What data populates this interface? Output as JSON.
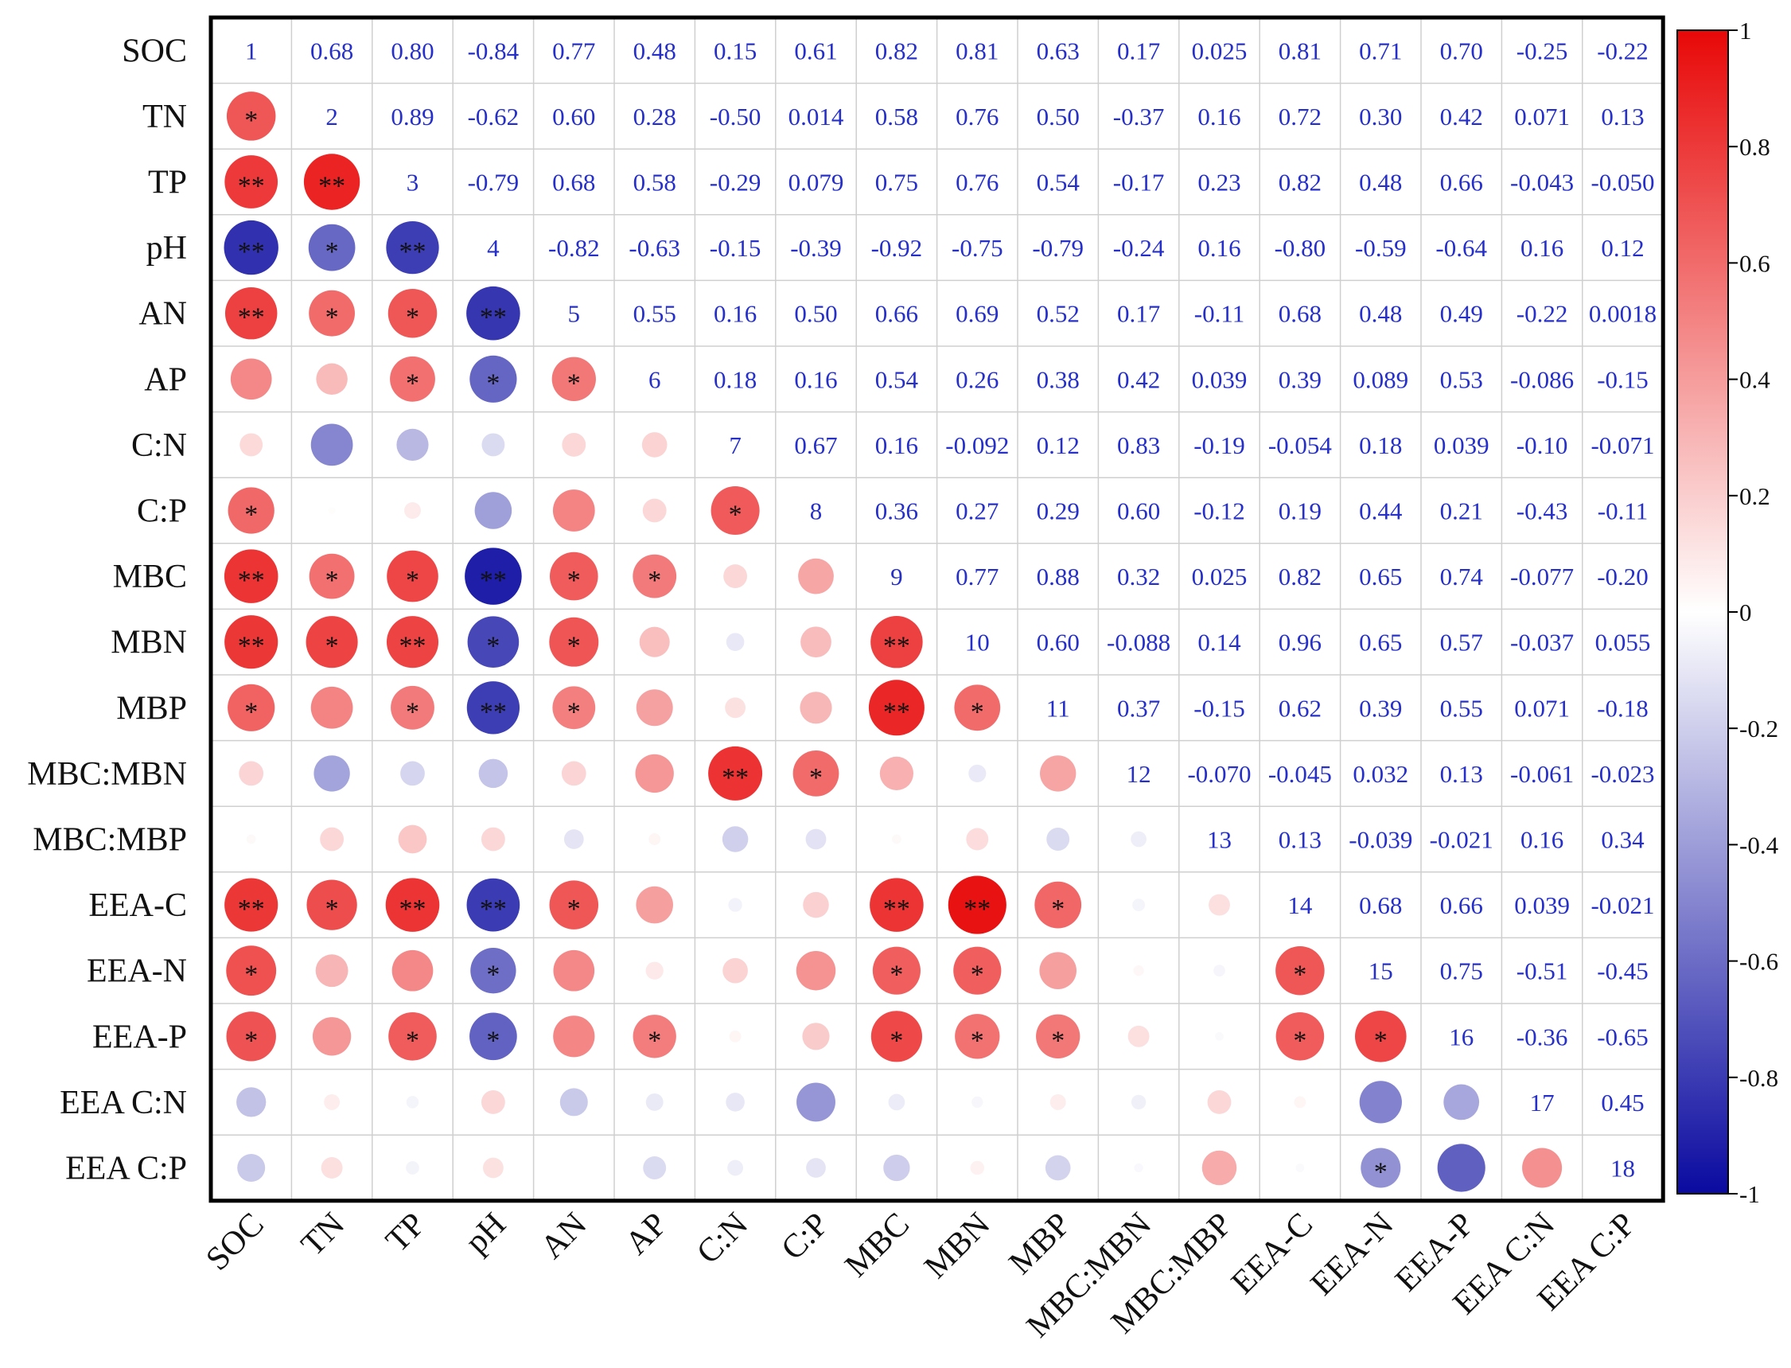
{
  "chart_data": {
    "type": "heatmap",
    "variables": [
      "SOC",
      "TN",
      "TP",
      "pH",
      "AN",
      "AP",
      "C:N",
      "C:P",
      "MBC",
      "MBN",
      "MBP",
      "MBC:MBN",
      "MBC:MBP",
      "EEA-C",
      "EEA-N",
      "EEA-P",
      "EEA C:N",
      "EEA C:P"
    ],
    "upper_labels": [
      [
        "1",
        "0.68",
        "0.80",
        "-0.84",
        "0.77",
        "0.48",
        "0.15",
        "0.61",
        "0.82",
        "0.81",
        "0.63",
        "0.17",
        "0.025",
        "0.81",
        "0.71",
        "0.70",
        "-0.25",
        "-0.22"
      ],
      [
        "",
        "2",
        "0.89",
        "-0.62",
        "0.60",
        "0.28",
        "-0.50",
        "0.014",
        "0.58",
        "0.76",
        "0.50",
        "-0.37",
        "0.16",
        "0.72",
        "0.30",
        "0.42",
        "0.071",
        "0.13"
      ],
      [
        "",
        "",
        "3",
        "-0.79",
        "0.68",
        "0.58",
        "-0.29",
        "0.079",
        "0.75",
        "0.76",
        "0.54",
        "-0.17",
        "0.23",
        "0.82",
        "0.48",
        "0.66",
        "-0.043",
        "-0.050"
      ],
      [
        "",
        "",
        "",
        "4",
        "-0.82",
        "-0.63",
        "-0.15",
        "-0.39",
        "-0.92",
        "-0.75",
        "-0.79",
        "-0.24",
        "0.16",
        "-0.80",
        "-0.59",
        "-0.64",
        "0.16",
        "0.12"
      ],
      [
        "",
        "",
        "",
        "",
        "5",
        "0.55",
        "0.16",
        "0.50",
        "0.66",
        "0.69",
        "0.52",
        "0.17",
        "-0.11",
        "0.68",
        "0.48",
        "0.49",
        "-0.22",
        "0.0018"
      ],
      [
        "",
        "",
        "",
        "",
        "",
        "6",
        "0.18",
        "0.16",
        "0.54",
        "0.26",
        "0.38",
        "0.42",
        "0.039",
        "0.39",
        "0.089",
        "0.53",
        "-0.086",
        "-0.15"
      ],
      [
        "",
        "",
        "",
        "",
        "",
        "",
        "7",
        "0.67",
        "0.16",
        "-0.092",
        "0.12",
        "0.83",
        "-0.19",
        "-0.054",
        "0.18",
        "0.039",
        "-0.10",
        "-0.071"
      ],
      [
        "",
        "",
        "",
        "",
        "",
        "",
        "",
        "8",
        "0.36",
        "0.27",
        "0.29",
        "0.60",
        "-0.12",
        "0.19",
        "0.44",
        "0.21",
        "-0.43",
        "-0.11"
      ],
      [
        "",
        "",
        "",
        "",
        "",
        "",
        "",
        "",
        "9",
        "0.77",
        "0.88",
        "0.32",
        "0.025",
        "0.82",
        "0.65",
        "0.74",
        "-0.077",
        "-0.20"
      ],
      [
        "",
        "",
        "",
        "",
        "",
        "",
        "",
        "",
        "",
        "10",
        "0.60",
        "-0.088",
        "0.14",
        "0.96",
        "0.65",
        "0.57",
        "-0.037",
        "0.055"
      ],
      [
        "",
        "",
        "",
        "",
        "",
        "",
        "",
        "",
        "",
        "",
        "11",
        "0.37",
        "-0.15",
        "0.62",
        "0.39",
        "0.55",
        "0.071",
        "-0.18"
      ],
      [
        "",
        "",
        "",
        "",
        "",
        "",
        "",
        "",
        "",
        "",
        "",
        "12",
        "-0.070",
        "-0.045",
        "0.032",
        "0.13",
        "-0.061",
        "-0.023"
      ],
      [
        "",
        "",
        "",
        "",
        "",
        "",
        "",
        "",
        "",
        "",
        "",
        "",
        "13",
        "0.13",
        "-0.039",
        "-0.021",
        "0.16",
        "0.34"
      ],
      [
        "",
        "",
        "",
        "",
        "",
        "",
        "",
        "",
        "",
        "",
        "",
        "",
        "",
        "14",
        "0.68",
        "0.66",
        "0.039",
        "-0.021"
      ],
      [
        "",
        "",
        "",
        "",
        "",
        "",
        "",
        "",
        "",
        "",
        "",
        "",
        "",
        "",
        "15",
        "0.75",
        "-0.51",
        "-0.45"
      ],
      [
        "",
        "",
        "",
        "",
        "",
        "",
        "",
        "",
        "",
        "",
        "",
        "",
        "",
        "",
        "",
        "16",
        "-0.36",
        "-0.65"
      ],
      [
        "",
        "",
        "",
        "",
        "",
        "",
        "",
        "",
        "",
        "",
        "",
        "",
        "",
        "",
        "",
        "",
        "17",
        "0.45"
      ],
      [
        "",
        "",
        "",
        "",
        "",
        "",
        "",
        "",
        "",
        "",
        "",
        "",
        "",
        "",
        "",
        "",
        "",
        "18"
      ]
    ],
    "significance": [
      [
        "",
        "",
        "",
        "",
        "",
        "",
        "",
        "",
        "",
        "",
        "",
        "",
        "",
        "",
        "",
        "",
        "",
        ""
      ],
      [
        "*",
        "",
        "",
        "",
        "",
        "",
        "",
        "",
        "",
        "",
        "",
        "",
        "",
        "",
        "",
        "",
        "",
        ""
      ],
      [
        "**",
        "**",
        "",
        "",
        "",
        "",
        "",
        "",
        "",
        "",
        "",
        "",
        "",
        "",
        "",
        "",
        "",
        ""
      ],
      [
        "**",
        "*",
        "**",
        "",
        "",
        "",
        "",
        "",
        "",
        "",
        "",
        "",
        "",
        "",
        "",
        "",
        "",
        ""
      ],
      [
        "**",
        "*",
        "*",
        "**",
        "",
        "",
        "",
        "",
        "",
        "",
        "",
        "",
        "",
        "",
        "",
        "",
        "",
        ""
      ],
      [
        "",
        "",
        "*",
        "*",
        "*",
        "",
        "",
        "",
        "",
        "",
        "",
        "",
        "",
        "",
        "",
        "",
        "",
        ""
      ],
      [
        "",
        "",
        "",
        "",
        "",
        "",
        "",
        "",
        "",
        "",
        "",
        "",
        "",
        "",
        "",
        "",
        "",
        ""
      ],
      [
        "*",
        "",
        "",
        "",
        "",
        "",
        "*",
        "",
        "",
        "",
        "",
        "",
        "",
        "",
        "",
        "",
        "",
        ""
      ],
      [
        "**",
        "*",
        "*",
        "**",
        "*",
        "*",
        "",
        "",
        "",
        "",
        "",
        "",
        "",
        "",
        "",
        "",
        "",
        ""
      ],
      [
        "**",
        "*",
        "**",
        "*",
        "*",
        "",
        "",
        "",
        "**",
        "",
        "",
        "",
        "",
        "",
        "",
        "",
        "",
        ""
      ],
      [
        "*",
        "",
        "*",
        "**",
        "*",
        "",
        "",
        "",
        "**",
        "*",
        "",
        "",
        "",
        "",
        "",
        "",
        "",
        ""
      ],
      [
        "",
        "",
        "",
        "",
        "",
        "",
        "**",
        "*",
        "",
        "",
        "",
        "",
        "",
        "",
        "",
        "",
        "",
        ""
      ],
      [
        "",
        "",
        "",
        "",
        "",
        "",
        "",
        "",
        "",
        "",
        "",
        "",
        "",
        "",
        "",
        "",
        "",
        ""
      ],
      [
        "**",
        "*",
        "**",
        "**",
        "*",
        "",
        "",
        "",
        "**",
        "**",
        "*",
        "",
        "",
        "",
        "",
        "",
        "",
        ""
      ],
      [
        "*",
        "",
        "",
        "*",
        "",
        "",
        "",
        "",
        "*",
        "*",
        "",
        "",
        "",
        "*",
        "",
        "",
        "",
        ""
      ],
      [
        "*",
        "",
        "*",
        "*",
        "",
        "*",
        "",
        "",
        "*",
        "*",
        "*",
        "",
        "",
        "*",
        "*",
        "",
        "",
        ""
      ],
      [
        "",
        "",
        "",
        "",
        "",
        "",
        "",
        "",
        "",
        "",
        "",
        "",
        "",
        "",
        "",
        "",
        "",
        ""
      ],
      [
        "",
        "",
        "",
        "",
        "",
        "",
        "",
        "",
        "",
        "",
        "",
        "",
        "",
        "",
        "*",
        "",
        "",
        ""
      ]
    ],
    "colorbar": {
      "range": [
        -1,
        1
      ],
      "ticks": [
        "1",
        "0.8",
        "0.6",
        "0.4",
        "0.2",
        "0",
        "-0.2",
        "-0.4",
        "-0.6",
        "-0.8",
        "-1"
      ],
      "colors": [
        "#0a0aa0",
        "#ffffff",
        "#e80808"
      ]
    }
  }
}
